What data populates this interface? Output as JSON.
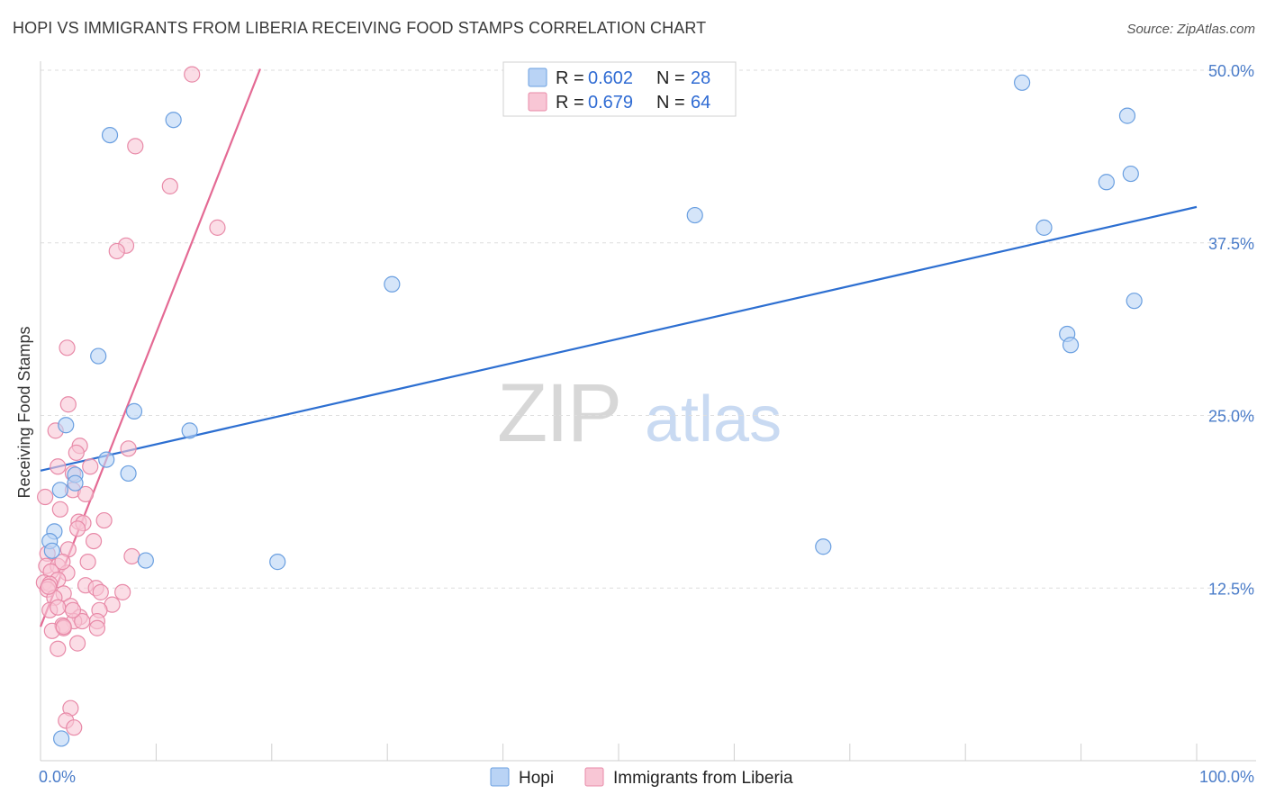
{
  "title": "HOPI VS IMMIGRANTS FROM LIBERIA RECEIVING FOOD STAMPS CORRELATION CHART",
  "source": "Source: ZipAtlas.com",
  "watermark": {
    "zip": "ZIP",
    "atlas": "atlas"
  },
  "colors": {
    "hopi_fill": "#b9d3f5",
    "hopi_stroke": "#6a9fe0",
    "hopi_line": "#2d6fd1",
    "liberia_fill": "#f8c6d5",
    "liberia_stroke": "#e88aa8",
    "liberia_line": "#e46a94",
    "grid": "#dedede",
    "tick_label": "#4a7cc9"
  },
  "legend": {
    "rows": [
      {
        "r_label": "R =",
        "r_value": "0.602",
        "n_label": "N =",
        "n_value": "28"
      },
      {
        "r_label": "R =",
        "r_value": "0.679",
        "n_label": "N =",
        "n_value": "64"
      }
    ]
  },
  "chart_data": {
    "type": "scatter",
    "title": "HOPI VS IMMIGRANTS FROM LIBERIA RECEIVING FOOD STAMPS CORRELATION CHART",
    "xlabel": "",
    "ylabel": "Receiving Food Stamps",
    "xlim": [
      0,
      100
    ],
    "ylim": [
      0,
      50
    ],
    "x_tick_labels": [
      "0.0%",
      "100.0%"
    ],
    "y_ticks": [
      12.5,
      25.0,
      37.5,
      50.0
    ],
    "y_tick_labels": [
      "12.5%",
      "25.0%",
      "37.5%",
      "50.0%"
    ],
    "grid": true,
    "legend_position": "top-center",
    "series": [
      {
        "name": "Hopi",
        "r": 0.602,
        "n": 28,
        "trend": {
          "x": [
            0,
            100
          ],
          "y": [
            21.0,
            40.1
          ]
        },
        "points": [
          [
            6.0,
            45.3
          ],
          [
            11.5,
            46.4
          ],
          [
            5.0,
            29.3
          ],
          [
            8.1,
            25.3
          ],
          [
            2.2,
            24.3
          ],
          [
            12.9,
            23.9
          ],
          [
            5.7,
            21.8
          ],
          [
            7.6,
            20.8
          ],
          [
            3.0,
            20.7
          ],
          [
            3.0,
            20.1
          ],
          [
            1.7,
            19.6
          ],
          [
            1.2,
            16.6
          ],
          [
            0.8,
            15.9
          ],
          [
            9.1,
            14.5
          ],
          [
            20.5,
            14.4
          ],
          [
            1.8,
            1.6
          ],
          [
            30.4,
            34.5
          ],
          [
            56.6,
            39.5
          ],
          [
            67.7,
            15.5
          ],
          [
            86.8,
            38.6
          ],
          [
            84.9,
            49.1
          ],
          [
            92.2,
            41.9
          ],
          [
            94.3,
            42.5
          ],
          [
            94.0,
            46.7
          ],
          [
            94.6,
            33.3
          ],
          [
            88.8,
            30.9
          ],
          [
            89.1,
            30.1
          ],
          [
            1.0,
            15.2
          ]
        ]
      },
      {
        "name": "Immigrants from Liberia",
        "r": 0.679,
        "n": 64,
        "trend": {
          "x": [
            0,
            19
          ],
          "y": [
            9.7,
            50.1
          ]
        },
        "points": [
          [
            13.1,
            49.7
          ],
          [
            8.2,
            44.5
          ],
          [
            11.2,
            41.6
          ],
          [
            7.4,
            37.3
          ],
          [
            6.6,
            36.9
          ],
          [
            15.3,
            38.6
          ],
          [
            2.3,
            29.9
          ],
          [
            2.4,
            25.8
          ],
          [
            1.3,
            23.9
          ],
          [
            3.4,
            22.8
          ],
          [
            7.6,
            22.6
          ],
          [
            3.1,
            22.3
          ],
          [
            1.5,
            21.3
          ],
          [
            4.3,
            21.3
          ],
          [
            2.8,
            20.8
          ],
          [
            2.8,
            19.6
          ],
          [
            3.9,
            19.3
          ],
          [
            0.4,
            19.1
          ],
          [
            1.7,
            18.2
          ],
          [
            3.3,
            17.3
          ],
          [
            3.7,
            17.2
          ],
          [
            5.5,
            17.4
          ],
          [
            3.2,
            16.8
          ],
          [
            4.6,
            15.9
          ],
          [
            2.4,
            15.3
          ],
          [
            0.6,
            15.0
          ],
          [
            7.9,
            14.8
          ],
          [
            4.1,
            14.4
          ],
          [
            0.5,
            14.1
          ],
          [
            1.5,
            14.1
          ],
          [
            0.9,
            13.7
          ],
          [
            2.3,
            13.6
          ],
          [
            1.5,
            13.1
          ],
          [
            0.3,
            12.9
          ],
          [
            0.8,
            12.8
          ],
          [
            3.9,
            12.7
          ],
          [
            4.8,
            12.5
          ],
          [
            0.6,
            12.4
          ],
          [
            5.2,
            12.2
          ],
          [
            7.1,
            12.2
          ],
          [
            2.0,
            12.1
          ],
          [
            1.2,
            11.8
          ],
          [
            2.6,
            11.2
          ],
          [
            6.2,
            11.3
          ],
          [
            0.8,
            10.9
          ],
          [
            1.5,
            11.1
          ],
          [
            5.1,
            10.9
          ],
          [
            3.4,
            10.4
          ],
          [
            2.9,
            10.1
          ],
          [
            4.9,
            10.1
          ],
          [
            1.9,
            9.8
          ],
          [
            2.0,
            9.6
          ],
          [
            4.9,
            9.6
          ],
          [
            1.0,
            9.4
          ],
          [
            2.0,
            9.7
          ],
          [
            3.2,
            8.5
          ],
          [
            1.5,
            8.1
          ],
          [
            2.6,
            3.8
          ],
          [
            2.2,
            2.9
          ],
          [
            2.9,
            2.4
          ],
          [
            3.6,
            10.1
          ],
          [
            2.8,
            10.9
          ],
          [
            1.9,
            14.4
          ],
          [
            0.7,
            12.6
          ]
        ]
      }
    ]
  },
  "bottom_legend": [
    {
      "label": "Hopi"
    },
    {
      "label": "Immigrants from Liberia"
    }
  ]
}
